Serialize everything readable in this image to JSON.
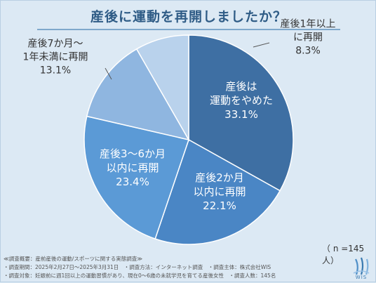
{
  "title": "産後に運動を再開しましたか？",
  "chart_data": {
    "type": "pie",
    "title": "産後に運動を再開しましたか？",
    "slices": [
      {
        "label_lines": [
          "産後は",
          "運動をやめた"
        ],
        "value": 33.1,
        "value_text": "33.1%",
        "color": "#3e6fa3",
        "label_color": "#ffffff"
      },
      {
        "label_lines": [
          "産後2か月",
          "以内に再開"
        ],
        "value": 22.1,
        "value_text": "22.1%",
        "color": "#4a86c5",
        "label_color": "#ffffff"
      },
      {
        "label_lines": [
          "産後3〜6か月",
          "以内に再開"
        ],
        "value": 23.4,
        "value_text": "23.4%",
        "color": "#5b9ad6",
        "label_color": "#ffffff"
      },
      {
        "label_lines": [
          "産後7か月〜",
          "1年未満に再開"
        ],
        "value": 13.1,
        "value_text": "13.1%",
        "color": "#8fb6e0",
        "label_color": "#333333"
      },
      {
        "label_lines": [
          "産後1年以上",
          "に再開"
        ],
        "value": 8.3,
        "value_text": "8.3%",
        "color": "#b9d2ec",
        "label_color": "#333333"
      }
    ]
  },
  "sample_size": "（ n =145 人）",
  "footnotes": [
    "≪調査概要：産前産後の運動/スポーツに関する実態調査≫",
    "・調査期間：2025年2月27日〜2025年3月31日　・調査方法：インターネット調査　・調査主体：株式会社WIS",
    "・調査対象：妊娠前に週1回以上の運動習慣があり、現在0〜6歳の未就学児を育てる産後女性　・調査人数：145名"
  ],
  "logo_text": "WIS"
}
